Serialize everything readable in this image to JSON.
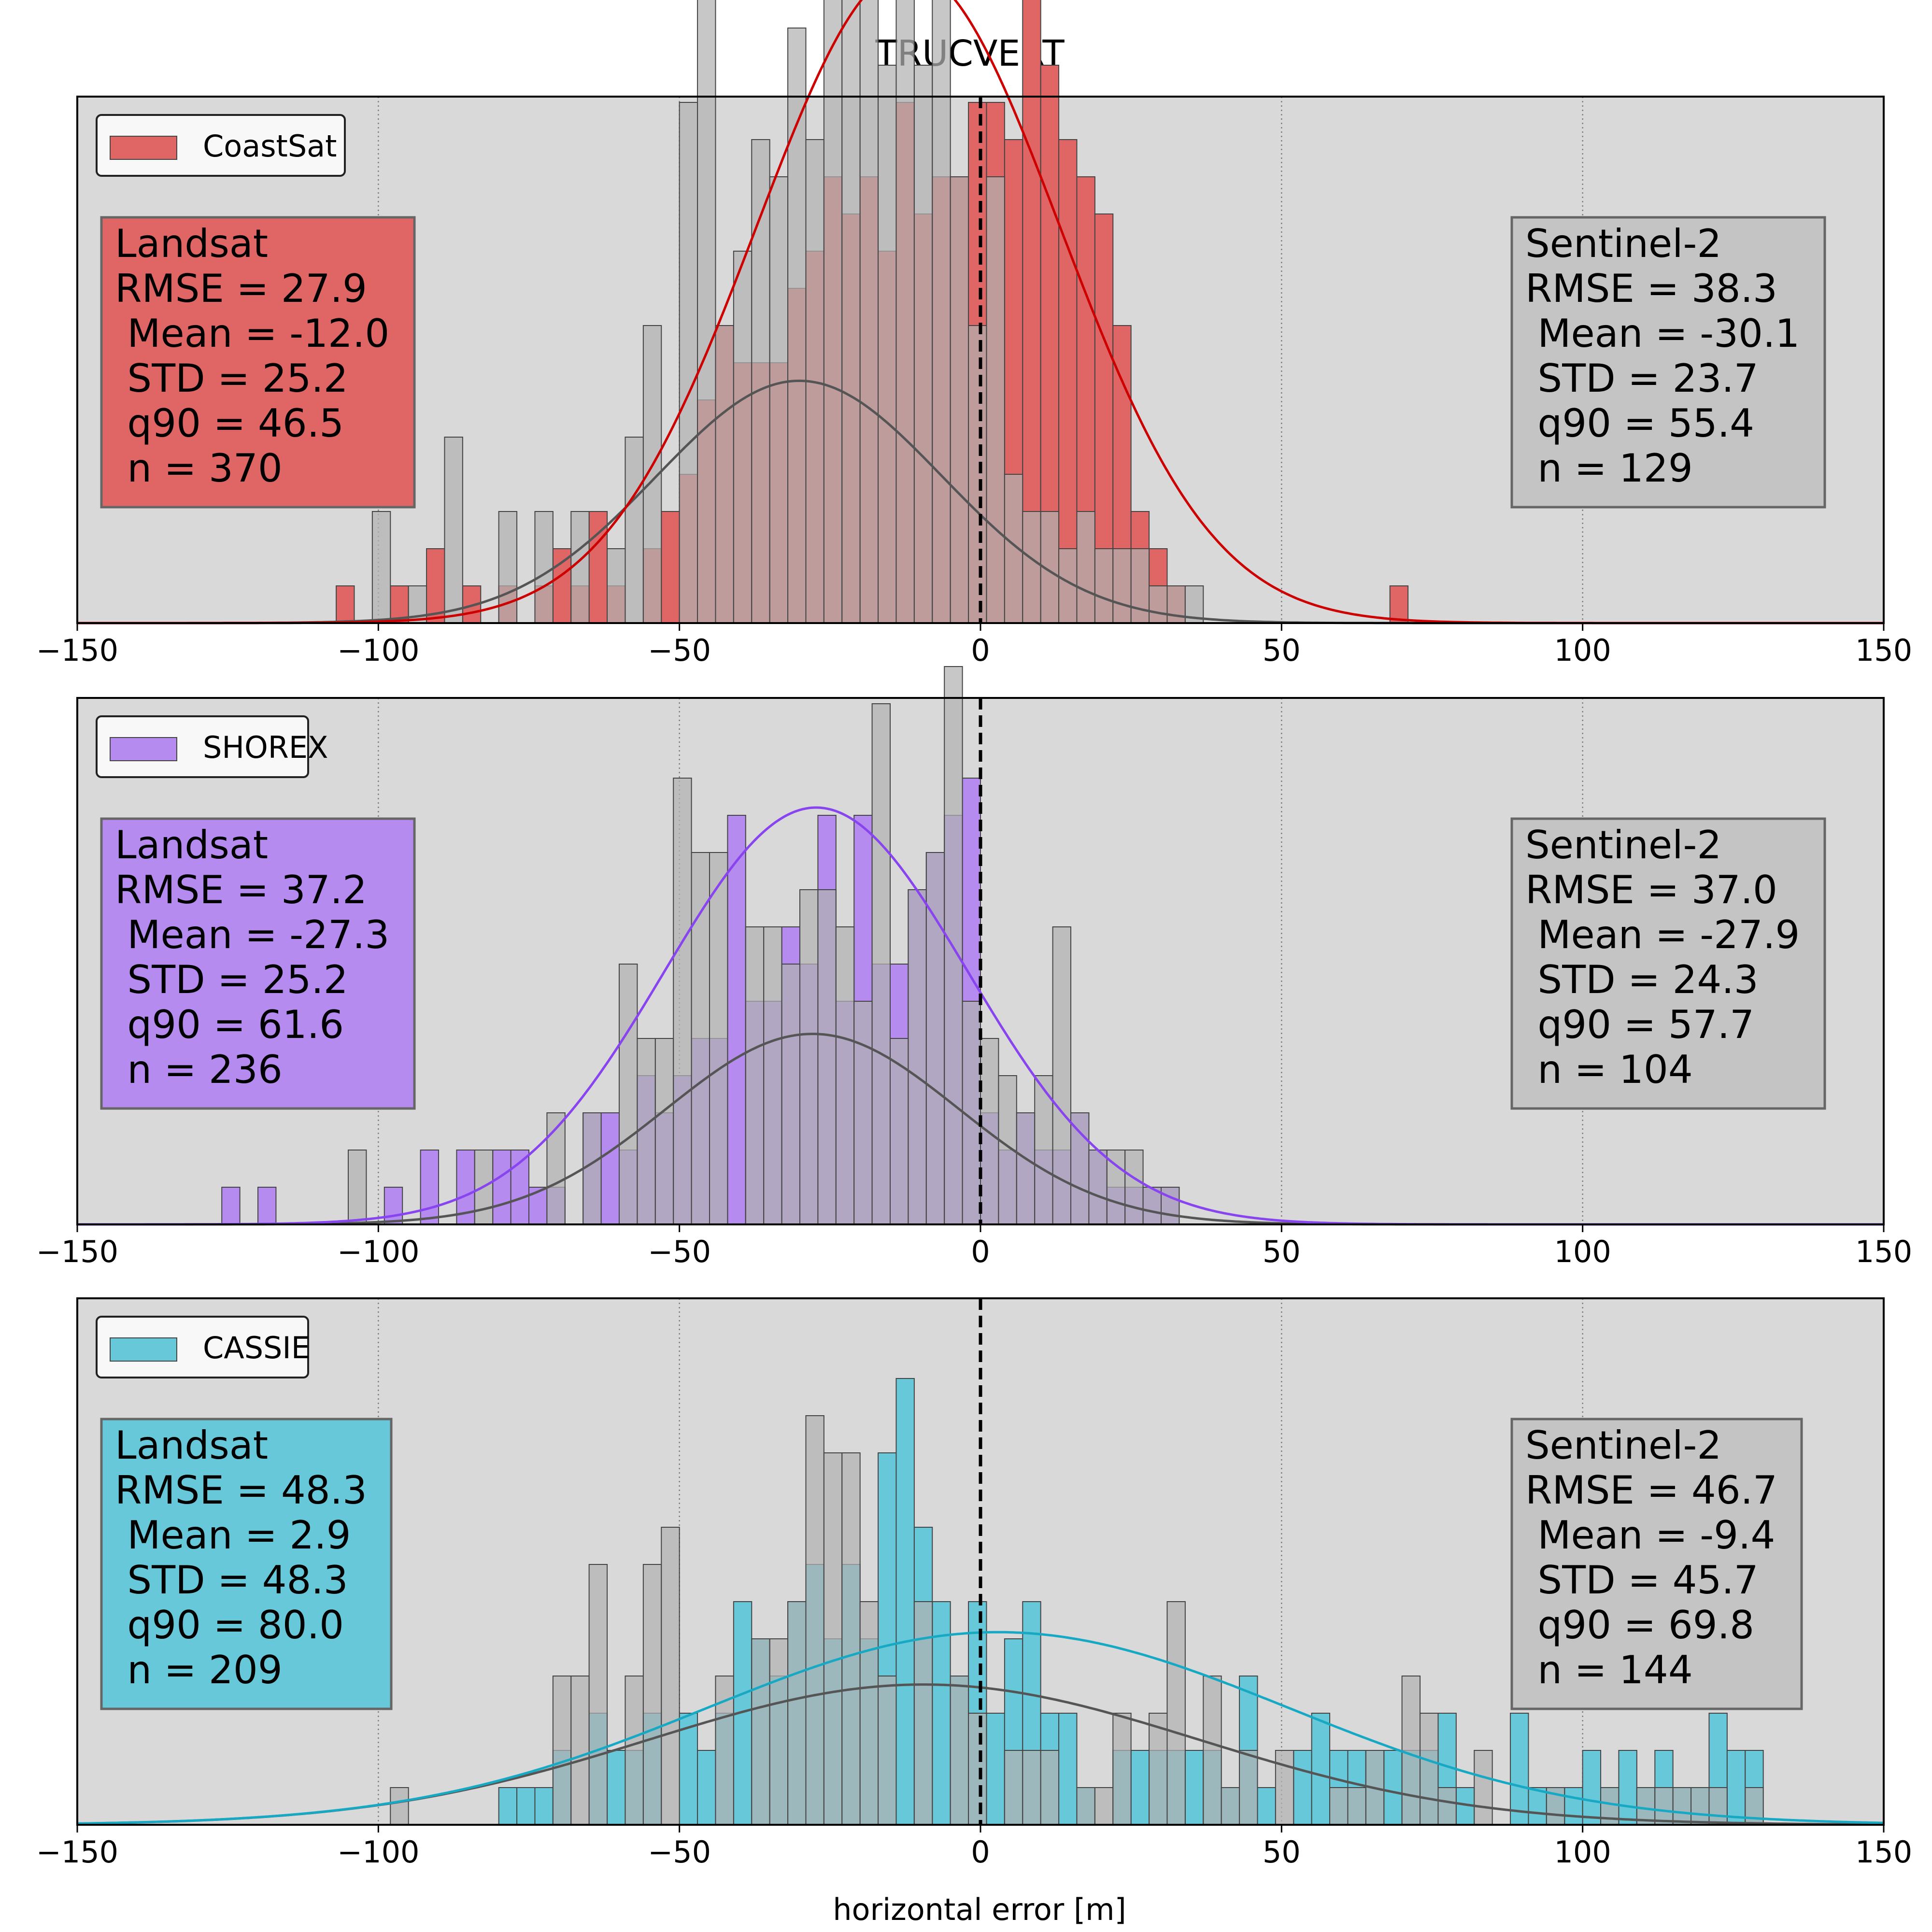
{
  "title": "TRUCVERT",
  "chart_data": [
    {
      "type": "histogram",
      "legend": "CoastSat",
      "legend_position": "top-left",
      "color": "#e06666",
      "fit_color": "#cc0000",
      "xlabel": "",
      "xlim": [
        -150,
        150
      ],
      "xticks": [
        -150,
        -100,
        -50,
        0,
        50,
        100,
        150
      ],
      "grid": "vertical dotted",
      "landsat": {
        "title": "Landsat",
        "stats": [
          "RMSE = 27.9",
          " Mean = -12.0",
          " STD = 25.2",
          " q90 = 46.5",
          " n = 370"
        ],
        "mean": -12.0,
        "std": 25.2,
        "bins": [
          [
            -107,
            1
          ],
          [
            -98,
            1
          ],
          [
            -92,
            2
          ],
          [
            -86,
            1
          ],
          [
            -80,
            1
          ],
          [
            -74,
            1
          ],
          [
            -71,
            2
          ],
          [
            -68,
            1
          ],
          [
            -65,
            3
          ],
          [
            -62,
            1
          ],
          [
            -56,
            2
          ],
          [
            -53,
            3
          ],
          [
            -50,
            4
          ],
          [
            -47,
            6
          ],
          [
            -44,
            8
          ],
          [
            -41,
            7
          ],
          [
            -38,
            7
          ],
          [
            -35,
            7
          ],
          [
            -32,
            9
          ],
          [
            -29,
            10
          ],
          [
            -26,
            12
          ],
          [
            -23,
            11
          ],
          [
            -20,
            12
          ],
          [
            -17,
            10
          ],
          [
            -14,
            14
          ],
          [
            -11,
            11
          ],
          [
            -8,
            12
          ],
          [
            -5,
            12
          ],
          [
            -2,
            14
          ],
          [
            1,
            14
          ],
          [
            4,
            13
          ],
          [
            7,
            19
          ],
          [
            10,
            15
          ],
          [
            13,
            13
          ],
          [
            16,
            12
          ],
          [
            19,
            11
          ],
          [
            22,
            8
          ],
          [
            25,
            3
          ],
          [
            28,
            2
          ],
          [
            31,
            1
          ],
          [
            68,
            1
          ]
        ]
      },
      "sentinel": {
        "title": "Sentinel-2",
        "stats": [
          "RMSE = 38.3",
          " Mean = -30.1",
          " STD = 23.7",
          " q90 = 55.4",
          " n = 129"
        ],
        "mean": -30.1,
        "std": 23.7,
        "bins": [
          [
            -101,
            3
          ],
          [
            -95,
            1
          ],
          [
            -89,
            5
          ],
          [
            -80,
            3
          ],
          [
            -74,
            3
          ],
          [
            -68,
            3
          ],
          [
            -62,
            2
          ],
          [
            -59,
            5
          ],
          [
            -56,
            8
          ],
          [
            -50,
            14
          ],
          [
            -47,
            20
          ],
          [
            -44,
            8
          ],
          [
            -41,
            10
          ],
          [
            -38,
            13
          ],
          [
            -35,
            12
          ],
          [
            -32,
            16
          ],
          [
            -29,
            13
          ],
          [
            -26,
            20
          ],
          [
            -23,
            22
          ],
          [
            -20,
            22
          ],
          [
            -17,
            15
          ],
          [
            -14,
            21
          ],
          [
            -11,
            15
          ],
          [
            -8,
            23
          ],
          [
            -5,
            12
          ],
          [
            -2,
            8
          ],
          [
            1,
            12
          ],
          [
            4,
            4
          ],
          [
            7,
            3
          ],
          [
            10,
            3
          ],
          [
            13,
            2
          ],
          [
            16,
            3
          ],
          [
            19,
            2
          ],
          [
            22,
            2
          ],
          [
            25,
            2
          ],
          [
            28,
            1
          ],
          [
            31,
            1
          ],
          [
            34,
            1
          ]
        ]
      }
    },
    {
      "type": "histogram",
      "legend": "SHOREX",
      "legend_position": "top-left",
      "color": "#b58bf0",
      "fit_color": "#8844ee",
      "xlabel": "",
      "xlim": [
        -150,
        150
      ],
      "xticks": [
        -150,
        -100,
        -50,
        0,
        50,
        100,
        150
      ],
      "grid": "vertical dotted",
      "landsat": {
        "title": "Landsat",
        "stats": [
          "RMSE = 37.2",
          " Mean = -27.3",
          " STD = 25.2",
          " q90 = 61.6",
          " n = 236"
        ],
        "mean": -27.3,
        "std": 25.2,
        "bins": [
          [
            -126,
            1
          ],
          [
            -120,
            1
          ],
          [
            -99,
            1
          ],
          [
            -93,
            2
          ],
          [
            -87,
            2
          ],
          [
            -81,
            2
          ],
          [
            -78,
            2
          ],
          [
            -75,
            1
          ],
          [
            -72,
            1
          ],
          [
            -66,
            3
          ],
          [
            -63,
            3
          ],
          [
            -60,
            2
          ],
          [
            -57,
            4
          ],
          [
            -54,
            3
          ],
          [
            -51,
            4
          ],
          [
            -48,
            5
          ],
          [
            -45,
            5
          ],
          [
            -42,
            11
          ],
          [
            -39,
            6
          ],
          [
            -36,
            6
          ],
          [
            -33,
            8
          ],
          [
            -30,
            7
          ],
          [
            -27,
            11
          ],
          [
            -24,
            6
          ],
          [
            -21,
            11
          ],
          [
            -18,
            7
          ],
          [
            -15,
            7
          ],
          [
            -12,
            9
          ],
          [
            -9,
            10
          ],
          [
            -6,
            11
          ],
          [
            -3,
            12
          ],
          [
            0,
            3
          ],
          [
            3,
            2
          ],
          [
            6,
            3
          ],
          [
            9,
            2
          ],
          [
            12,
            2
          ],
          [
            15,
            3
          ],
          [
            18,
            2
          ],
          [
            21,
            1
          ],
          [
            24,
            1
          ],
          [
            27,
            1
          ],
          [
            30,
            1
          ]
        ]
      },
      "sentinel": {
        "title": "Sentinel-2",
        "stats": [
          "RMSE = 37.0",
          " Mean = -27.9",
          " STD = 24.3",
          " q90 = 57.7",
          " n = 104"
        ],
        "mean": -27.9,
        "std": 24.3,
        "bins": [
          [
            -105,
            2
          ],
          [
            -84,
            2
          ],
          [
            -72,
            3
          ],
          [
            -66,
            3
          ],
          [
            -60,
            7
          ],
          [
            -57,
            5
          ],
          [
            -54,
            5
          ],
          [
            -51,
            12
          ],
          [
            -48,
            10
          ],
          [
            -45,
            10
          ],
          [
            -39,
            8
          ],
          [
            -36,
            8
          ],
          [
            -33,
            7
          ],
          [
            -30,
            9
          ],
          [
            -27,
            9
          ],
          [
            -24,
            8
          ],
          [
            -21,
            6
          ],
          [
            -18,
            14
          ],
          [
            -15,
            5
          ],
          [
            -12,
            9
          ],
          [
            -9,
            10
          ],
          [
            -6,
            15
          ],
          [
            -3,
            6
          ],
          [
            0,
            5
          ],
          [
            3,
            4
          ],
          [
            6,
            3
          ],
          [
            9,
            4
          ],
          [
            12,
            8
          ],
          [
            15,
            3
          ],
          [
            18,
            2
          ],
          [
            21,
            2
          ],
          [
            24,
            2
          ],
          [
            27,
            1
          ],
          [
            30,
            1
          ]
        ]
      }
    },
    {
      "type": "histogram",
      "legend": "CASSIE",
      "legend_position": "top-left",
      "color": "#66c8d8",
      "fit_color": "#17a8c4",
      "xlabel": "horizontal error [m]",
      "xlim": [
        -150,
        150
      ],
      "xticks": [
        -150,
        -100,
        -50,
        0,
        50,
        100,
        150
      ],
      "grid": "vertical dotted",
      "landsat": {
        "title": "Landsat",
        "stats": [
          "RMSE = 48.3",
          " Mean = 2.9",
          " STD = 48.3",
          " q90 = 80.0",
          " n = 209"
        ],
        "mean": 2.9,
        "std": 48.3,
        "bins": [
          [
            -80,
            1
          ],
          [
            -77,
            1
          ],
          [
            -74,
            1
          ],
          [
            -71,
            2
          ],
          [
            -65,
            3
          ],
          [
            -62,
            2
          ],
          [
            -59,
            2
          ],
          [
            -56,
            3
          ],
          [
            -50,
            3
          ],
          [
            -47,
            2
          ],
          [
            -44,
            3
          ],
          [
            -41,
            6
          ],
          [
            -38,
            5
          ],
          [
            -35,
            4
          ],
          [
            -32,
            6
          ],
          [
            -29,
            7
          ],
          [
            -26,
            5
          ],
          [
            -23,
            7
          ],
          [
            -20,
            5
          ],
          [
            -17,
            10
          ],
          [
            -14,
            12
          ],
          [
            -11,
            8
          ],
          [
            -8,
            6
          ],
          [
            -5,
            4
          ],
          [
            -2,
            6
          ],
          [
            1,
            3
          ],
          [
            4,
            5
          ],
          [
            7,
            6
          ],
          [
            10,
            3
          ],
          [
            13,
            3
          ],
          [
            16,
            1
          ],
          [
            22,
            2
          ],
          [
            25,
            2
          ],
          [
            28,
            2
          ],
          [
            31,
            2
          ],
          [
            34,
            2
          ],
          [
            37,
            2
          ],
          [
            40,
            1
          ],
          [
            43,
            4
          ],
          [
            46,
            1
          ],
          [
            52,
            2
          ],
          [
            55,
            3
          ],
          [
            58,
            2
          ],
          [
            61,
            2
          ],
          [
            64,
            2
          ],
          [
            67,
            2
          ],
          [
            70,
            2
          ],
          [
            73,
            2
          ],
          [
            76,
            3
          ],
          [
            79,
            1
          ],
          [
            88,
            3
          ],
          [
            91,
            1
          ],
          [
            94,
            1
          ],
          [
            97,
            1
          ],
          [
            100,
            2
          ],
          [
            103,
            1
          ],
          [
            106,
            2
          ],
          [
            109,
            1
          ],
          [
            112,
            2
          ],
          [
            115,
            1
          ],
          [
            118,
            1
          ],
          [
            121,
            3
          ],
          [
            124,
            2
          ],
          [
            127,
            2
          ]
        ]
      },
      "sentinel": {
        "title": "Sentinel-2",
        "stats": [
          "RMSE = 46.7",
          " Mean = -9.4",
          " STD = 45.7",
          " q90 = 69.8",
          " n = 144"
        ],
        "mean": -9.4,
        "std": 45.7,
        "bins": [
          [
            -98,
            1
          ],
          [
            -71,
            4
          ],
          [
            -68,
            4
          ],
          [
            -65,
            7
          ],
          [
            -59,
            4
          ],
          [
            -56,
            7
          ],
          [
            -53,
            8
          ],
          [
            -44,
            4
          ],
          [
            -38,
            5
          ],
          [
            -35,
            5
          ],
          [
            -32,
            6
          ],
          [
            -29,
            11
          ],
          [
            -26,
            10
          ],
          [
            -23,
            10
          ],
          [
            -20,
            6
          ],
          [
            -17,
            4
          ],
          [
            -11,
            6
          ],
          [
            -5,
            4
          ],
          [
            -2,
            3
          ],
          [
            4,
            2
          ],
          [
            7,
            2
          ],
          [
            10,
            2
          ],
          [
            16,
            1
          ],
          [
            19,
            1
          ],
          [
            22,
            3
          ],
          [
            28,
            3
          ],
          [
            31,
            6
          ],
          [
            37,
            4
          ],
          [
            40,
            1
          ],
          [
            43,
            2
          ],
          [
            49,
            2
          ],
          [
            58,
            1
          ],
          [
            61,
            1
          ],
          [
            64,
            2
          ],
          [
            70,
            4
          ],
          [
            73,
            3
          ],
          [
            76,
            1
          ],
          [
            82,
            2
          ],
          [
            94,
            1
          ],
          [
            103,
            1
          ],
          [
            109,
            1
          ],
          [
            112,
            1
          ],
          [
            115,
            1
          ],
          [
            118,
            1
          ],
          [
            121,
            1
          ],
          [
            127,
            1
          ]
        ]
      }
    }
  ]
}
